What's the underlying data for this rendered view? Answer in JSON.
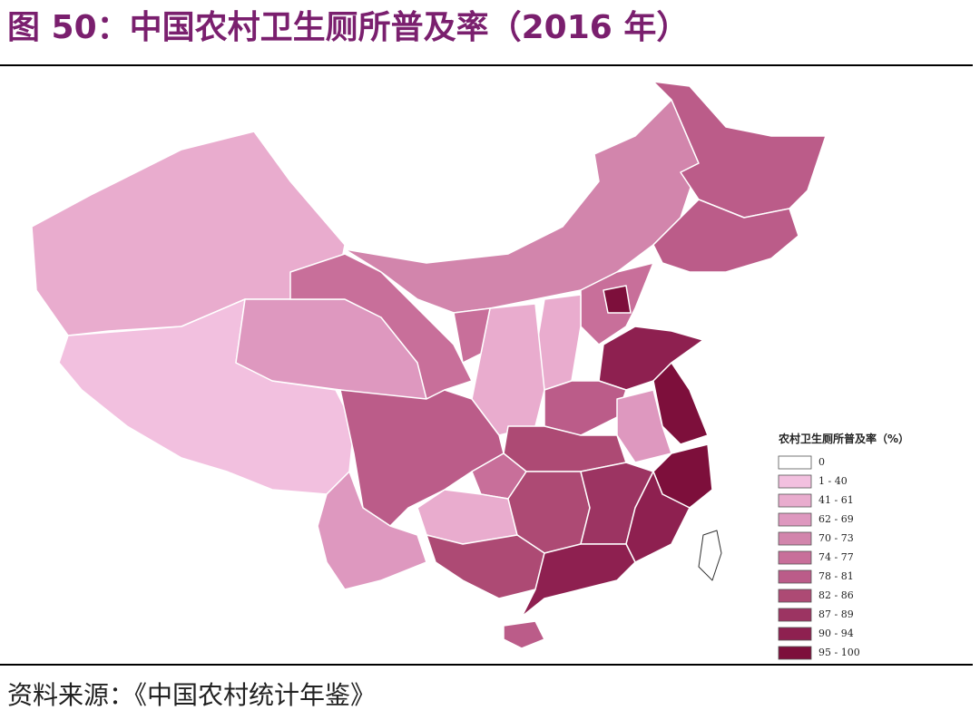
{
  "header": {
    "title": "图 50：中国农村卫生厕所普及率（2016 年）"
  },
  "legend": {
    "title": "农村卫生厕所普及率（%）",
    "items": [
      {
        "label": "0",
        "color": "#ffffff"
      },
      {
        "label": "1 - 40",
        "color": "#f2c0df"
      },
      {
        "label": "41 - 61",
        "color": "#e9acce"
      },
      {
        "label": "62 - 69",
        "color": "#de98bf"
      },
      {
        "label": "70 - 73",
        "color": "#d285ac"
      },
      {
        "label": "74 - 77",
        "color": "#c86f9a"
      },
      {
        "label": "78 - 81",
        "color": "#bb5c89"
      },
      {
        "label": "82 - 86",
        "color": "#ad4a74"
      },
      {
        "label": "87 - 89",
        "color": "#9c3462"
      },
      {
        "label": "90 - 94",
        "color": "#8e2050"
      },
      {
        "label": "95 - 100",
        "color": "#7d0f3b"
      }
    ]
  },
  "source": "资料来源：《中国农村统计年鉴》"
}
